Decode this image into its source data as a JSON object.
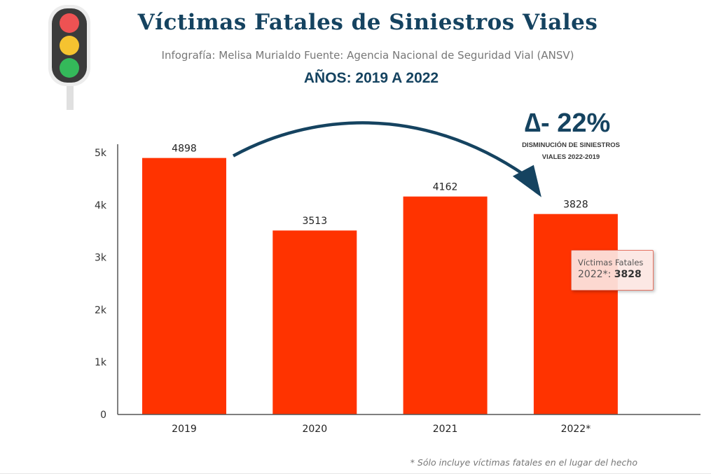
{
  "header": {
    "title": "Víctimas Fatales de Siniestros Viales",
    "subtitle": "Infografía: Melisa Murialdo Fuente: Agencia Nacional de Seguridad Vial (ANSV)",
    "years": "AÑOS: 2019 A 2022",
    "icon": "traffic-light-icon"
  },
  "annotation": {
    "delta": "∆- 22%",
    "caption_line1": "DISMINUCIÓN DE SINIESTROS",
    "caption_line2": "VIALES 2022-2019",
    "arrow_from": "2019",
    "arrow_to": "2022*"
  },
  "tooltip": {
    "label": "Víctimas Fatales",
    "category": "2022*: ",
    "value": "3828"
  },
  "footnote": "* Sólo incluye víctimas fatales en el lugar del hecho",
  "colors": {
    "bar": "#ff3300",
    "title": "#154360",
    "arrow": "#154360"
  },
  "chart_data": {
    "type": "bar",
    "title": "Víctimas Fatales de Siniestros Viales",
    "xlabel": "",
    "ylabel": "",
    "categories": [
      "2019",
      "2020",
      "2021",
      "2022*"
    ],
    "values": [
      4898,
      3513,
      4162,
      3828
    ],
    "data_labels": [
      "4898",
      "3513",
      "4162",
      "3828"
    ],
    "ylim": [
      0,
      5000
    ],
    "yticks": [
      0,
      1000,
      2000,
      3000,
      4000,
      5000
    ],
    "ytick_labels": [
      "0",
      "1k",
      "2k",
      "3k",
      "4k",
      "5k"
    ],
    "grid": false,
    "legend": "none"
  }
}
